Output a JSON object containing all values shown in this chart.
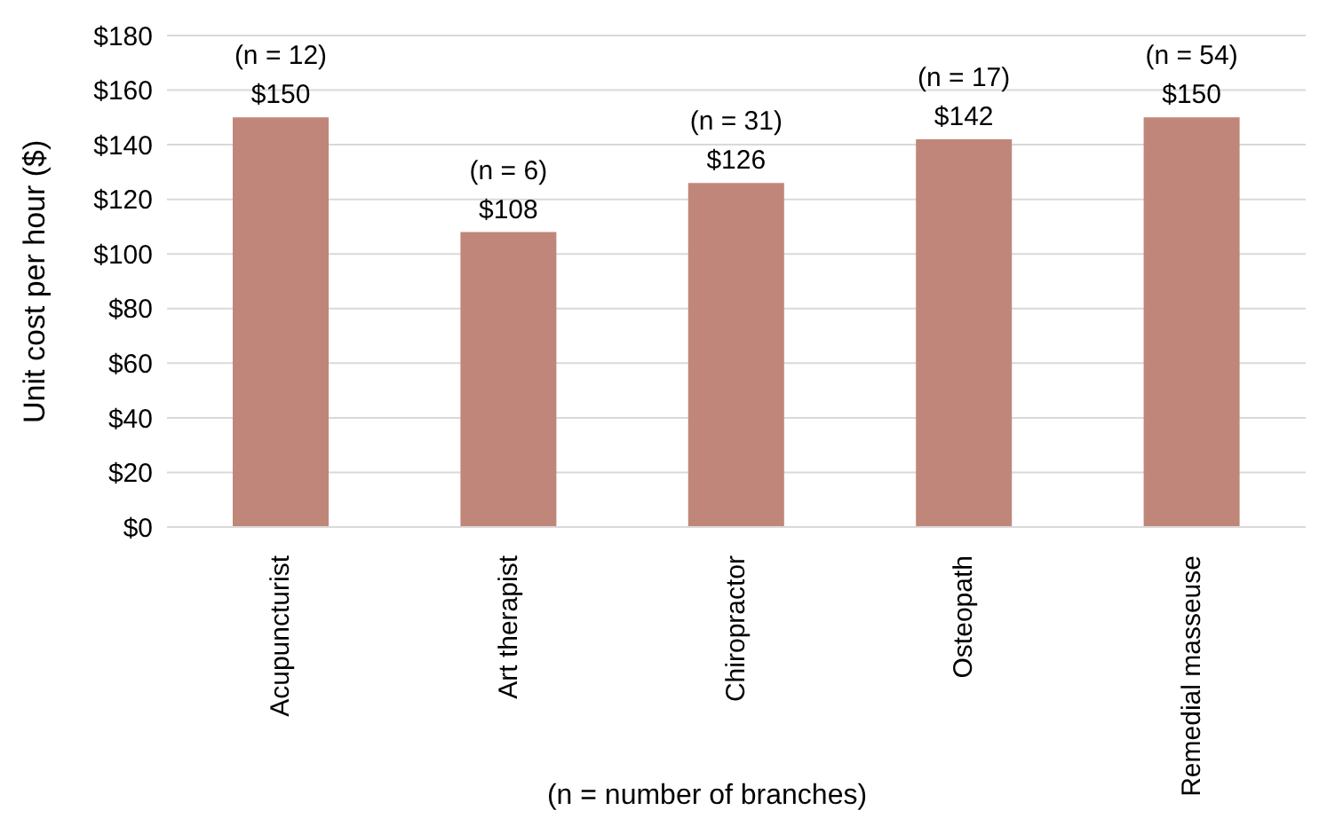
{
  "chart_data": {
    "type": "bar",
    "categories": [
      "Acupuncturist",
      "Art therapist",
      "Chiropractor",
      "Osteopath",
      "Remedial masseuse"
    ],
    "values": [
      150,
      108,
      126,
      142,
      150
    ],
    "color": "#c0867a",
    "value_labels": [
      "$150",
      "$108",
      "$126",
      "$142",
      "$150"
    ],
    "annotations": [
      {
        "text": "(n = 12)",
        "x": "Acupuncturist",
        "y": 150
      },
      {
        "text": "(n = 6)",
        "x": "Art therapist",
        "y": 108
      },
      {
        "text": "(n = 31)",
        "x": "Chiropractor",
        "y": 126
      },
      {
        "text": "(n = 17)",
        "x": "Osteopath",
        "y": 142
      },
      {
        "text": "(n = 54)",
        "x": "Remedial masseuse",
        "y": 150
      }
    ],
    "ylabel": "Unit cost per hour ($)",
    "xlabel": "(n = number of branches)",
    "ylim": [
      0,
      180
    ],
    "yticks": [
      {
        "value": 0,
        "label": "$0"
      },
      {
        "value": 20,
        "label": "$20"
      },
      {
        "value": 40,
        "label": "$40"
      },
      {
        "value": 60,
        "label": "$60"
      },
      {
        "value": 80,
        "label": "$80"
      },
      {
        "value": 100,
        "label": "$100"
      },
      {
        "value": 120,
        "label": "$120"
      },
      {
        "value": 140,
        "label": "$140"
      },
      {
        "value": 160,
        "label": "$160"
      },
      {
        "value": 180,
        "label": "$180"
      }
    ],
    "grid": "y",
    "legend": false
  }
}
